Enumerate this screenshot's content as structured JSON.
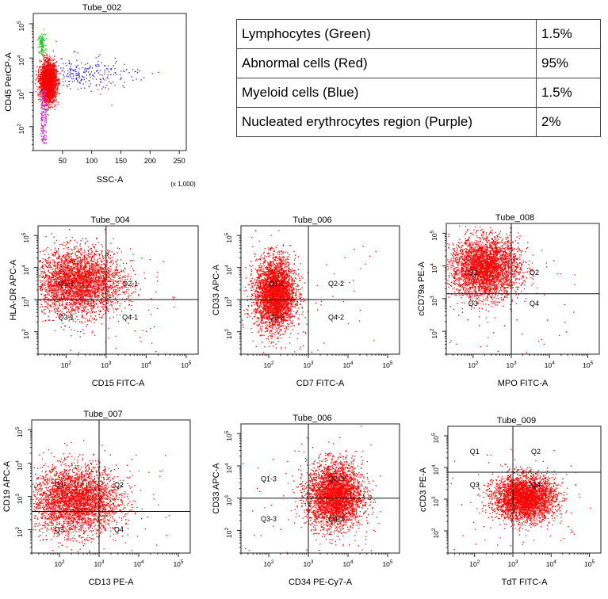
{
  "legend_table": {
    "rows": [
      {
        "label": "Lymphocytes (Green)",
        "value": "1.5%"
      },
      {
        "label": "Abnormal cells (Red)",
        "value": "95%"
      },
      {
        "label": "Myeloid cells (Blue)",
        "value": "1.5%"
      },
      {
        "label": "Nucleated erythrocytes region (Purple)",
        "value": "2%"
      }
    ]
  },
  "chart_data": [
    {
      "type": "scatter",
      "title": "Tube_002",
      "xlabel": "SSC-A",
      "ylabel": "CD45 PerCP-A",
      "x_scale": "linear",
      "x_multiplier_label": "(x 1,000)",
      "xlim": [
        0,
        262
      ],
      "xticks": [
        50,
        100,
        150,
        200,
        250
      ],
      "y_scale": "log",
      "ylim": [
        1.3,
        5.3
      ],
      "ytick_labels": [
        "10^2",
        "10^3",
        "10^4",
        "10^5"
      ],
      "series": [
        {
          "name": "Lymphocytes",
          "color": "#1ec81e",
          "pct": 1.5,
          "center_x": 14,
          "center_y": 4.4
        },
        {
          "name": "Abnormal cells",
          "color": "#ff0000",
          "pct": 95,
          "center_x": 25,
          "center_y": 3.3
        },
        {
          "name": "Myeloid cells",
          "color": "#2828e6",
          "pct": 1.5,
          "center_x": 95,
          "center_y": 3.6
        },
        {
          "name": "Nucleated erythrocytes",
          "color": "#c832c8",
          "pct": 2,
          "center_x": 16,
          "center_y": 2.4
        }
      ]
    },
    {
      "type": "scatter",
      "title": "Tube_004",
      "xlabel": "CD15 FITC-A",
      "ylabel": "HLA-DR APC-A",
      "x_scale": "log",
      "y_scale": "log",
      "xlim": [
        1.3,
        5.3
      ],
      "ylim": [
        1.3,
        5.3
      ],
      "xtick_labels": [
        "10^2",
        "10^3",
        "10^4",
        "10^5"
      ],
      "ytick_labels": [
        "10^2",
        "10^3",
        "10^4",
        "10^5"
      ],
      "quadrant_x": 3.0,
      "quadrant_y": 3.0,
      "quadrants": [
        "Q1-1",
        "Q2-1",
        "Q3-1",
        "Q4-1"
      ],
      "population": {
        "center_x": 2.3,
        "center_y": 3.55,
        "color": "#ff0000"
      }
    },
    {
      "type": "scatter",
      "title": "Tube_006",
      "xlabel": "CD7 FITC-A",
      "ylabel": "CD33 APC-A",
      "x_scale": "log",
      "y_scale": "log",
      "xlim": [
        1.3,
        5.3
      ],
      "ylim": [
        1.3,
        5.3
      ],
      "xtick_labels": [
        "10^2",
        "10^3",
        "10^4",
        "10^5"
      ],
      "ytick_labels": [
        "10^2",
        "10^3",
        "10^4",
        "10^5"
      ],
      "quadrant_x": 3.0,
      "quadrant_y": 3.0,
      "quadrants": [
        "Q1-2",
        "Q2-2",
        "Q3-2",
        "Q4-2"
      ],
      "population": {
        "center_x": 2.15,
        "center_y": 3.2,
        "color": "#ff0000"
      }
    },
    {
      "type": "scatter",
      "title": "Tube_008",
      "xlabel": "MPO FITC-A",
      "ylabel": "cCD79a PE-A",
      "x_scale": "log",
      "y_scale": "log",
      "xlim": [
        1.3,
        5.3
      ],
      "ylim": [
        1.3,
        5.3
      ],
      "xtick_labels": [
        "10^2",
        "10^3",
        "10^4",
        "10^5"
      ],
      "ytick_labels": [
        "10^2",
        "10^3",
        "10^4",
        "10^5"
      ],
      "quadrant_x": 3.0,
      "quadrant_y": 3.15,
      "quadrants": [
        "Q1",
        "Q2",
        "Q3",
        "Q4"
      ],
      "population": {
        "center_x": 2.3,
        "center_y": 3.95,
        "color": "#ff0000"
      }
    },
    {
      "type": "scatter",
      "title": "Tube_007",
      "xlabel": "CD13 PE-A",
      "ylabel": "CD19 APC-A",
      "x_scale": "log",
      "y_scale": "log",
      "xlim": [
        1.3,
        5.3
      ],
      "ylim": [
        1.3,
        5.3
      ],
      "xtick_labels": [
        "10^2",
        "10^3",
        "10^4",
        "10^5"
      ],
      "ytick_labels": [
        "10^2",
        "10^3",
        "10^4",
        "10^5"
      ],
      "quadrant_x": 3.0,
      "quadrant_y": 2.55,
      "quadrants": [
        "Q1",
        "Q2",
        "Q3",
        "Q4"
      ],
      "population": {
        "center_x": 2.4,
        "center_y": 2.9,
        "color": "#ff0000"
      }
    },
    {
      "type": "scatter",
      "title": "Tube_006",
      "xlabel": "CD34 PE-Cy7-A",
      "ylabel": "CD33 APC-A",
      "x_scale": "log",
      "y_scale": "log",
      "xlim": [
        1.3,
        5.3
      ],
      "ylim": [
        1.3,
        5.3
      ],
      "xtick_labels": [
        "10^2",
        "10^3",
        "10^4",
        "10^5"
      ],
      "ytick_labels": [
        "10^2",
        "10^3",
        "10^4",
        "10^5"
      ],
      "quadrant_x": 3.0,
      "quadrant_y": 3.0,
      "quadrants": [
        "Q1-3",
        "Q2-3",
        "Q3-3",
        "Q4-3"
      ],
      "population": {
        "center_x": 3.65,
        "center_y": 3.1,
        "color": "#ff0000"
      }
    },
    {
      "type": "scatter",
      "title": "Tube_009",
      "xlabel": "TdT FITC-A",
      "ylabel": "cCD3 PE-A",
      "x_scale": "log",
      "y_scale": "log",
      "xlim": [
        1.3,
        5.3
      ],
      "ylim": [
        1.3,
        5.3
      ],
      "xtick_labels": [
        "10^2",
        "10^3",
        "10^4",
        "10^5"
      ],
      "ytick_labels": [
        "10^2",
        "10^3",
        "10^4",
        "10^5"
      ],
      "quadrant_x": 3.0,
      "quadrant_y": 3.85,
      "quadrants": [
        "Q1",
        "Q2",
        "Q3",
        "Q4"
      ],
      "population": {
        "center_x": 3.3,
        "center_y": 3.05,
        "color": "#ff0000"
      }
    }
  ]
}
